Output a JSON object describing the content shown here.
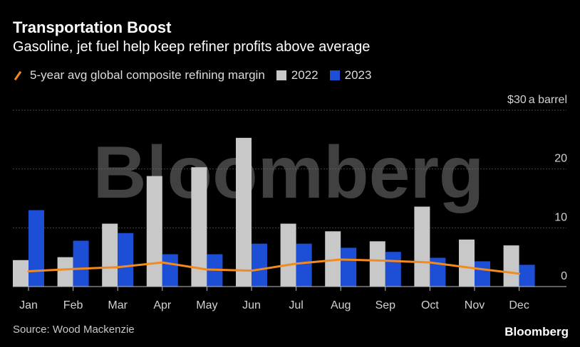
{
  "header": {
    "title": "Transportation Boost",
    "subtitle": "Gasoline, jet fuel help keep refiner profits above average"
  },
  "legend": {
    "line_label": "5-year avg global composite refining margin",
    "series_2022": "2022",
    "series_2023": "2023"
  },
  "footer": {
    "source": "Source: Wood Mackenzie",
    "brand": "Bloomberg"
  },
  "watermark": "Bloomberg",
  "colors": {
    "bar_2022": "#c8c8c8",
    "bar_2023": "#1d4fd6",
    "avg_line": "#f28a1e",
    "grid": "#444444"
  },
  "chart_data": {
    "type": "bar",
    "categories": [
      "Jan",
      "Feb",
      "Mar",
      "Apr",
      "May",
      "Jun",
      "Jul",
      "Aug",
      "Sep",
      "Oct",
      "Nov",
      "Dec"
    ],
    "series": [
      {
        "name": "2022",
        "values": [
          4.5,
          5,
          10.7,
          18.8,
          20.3,
          25.3,
          10.7,
          9.4,
          7.7,
          13.6,
          8,
          7
        ]
      },
      {
        "name": "2023",
        "values": [
          13,
          7.8,
          9.1,
          5.5,
          5.5,
          7.3,
          7.3,
          6.6,
          5.9,
          4.9,
          4.3,
          3.7
        ]
      },
      {
        "name": "5-year avg global composite refining margin",
        "type": "line",
        "values": [
          2.6,
          3,
          3.3,
          4.1,
          2.9,
          2.7,
          3.9,
          4.6,
          4.4,
          4.1,
          3.1,
          2.2
        ]
      }
    ],
    "ylim": [
      0,
      30
    ],
    "yticks": [
      0,
      10,
      20,
      30
    ],
    "ytick_labels": [
      "0",
      "10",
      "20",
      "$30"
    ],
    "yunit_label": "a barrel",
    "grid": true
  }
}
